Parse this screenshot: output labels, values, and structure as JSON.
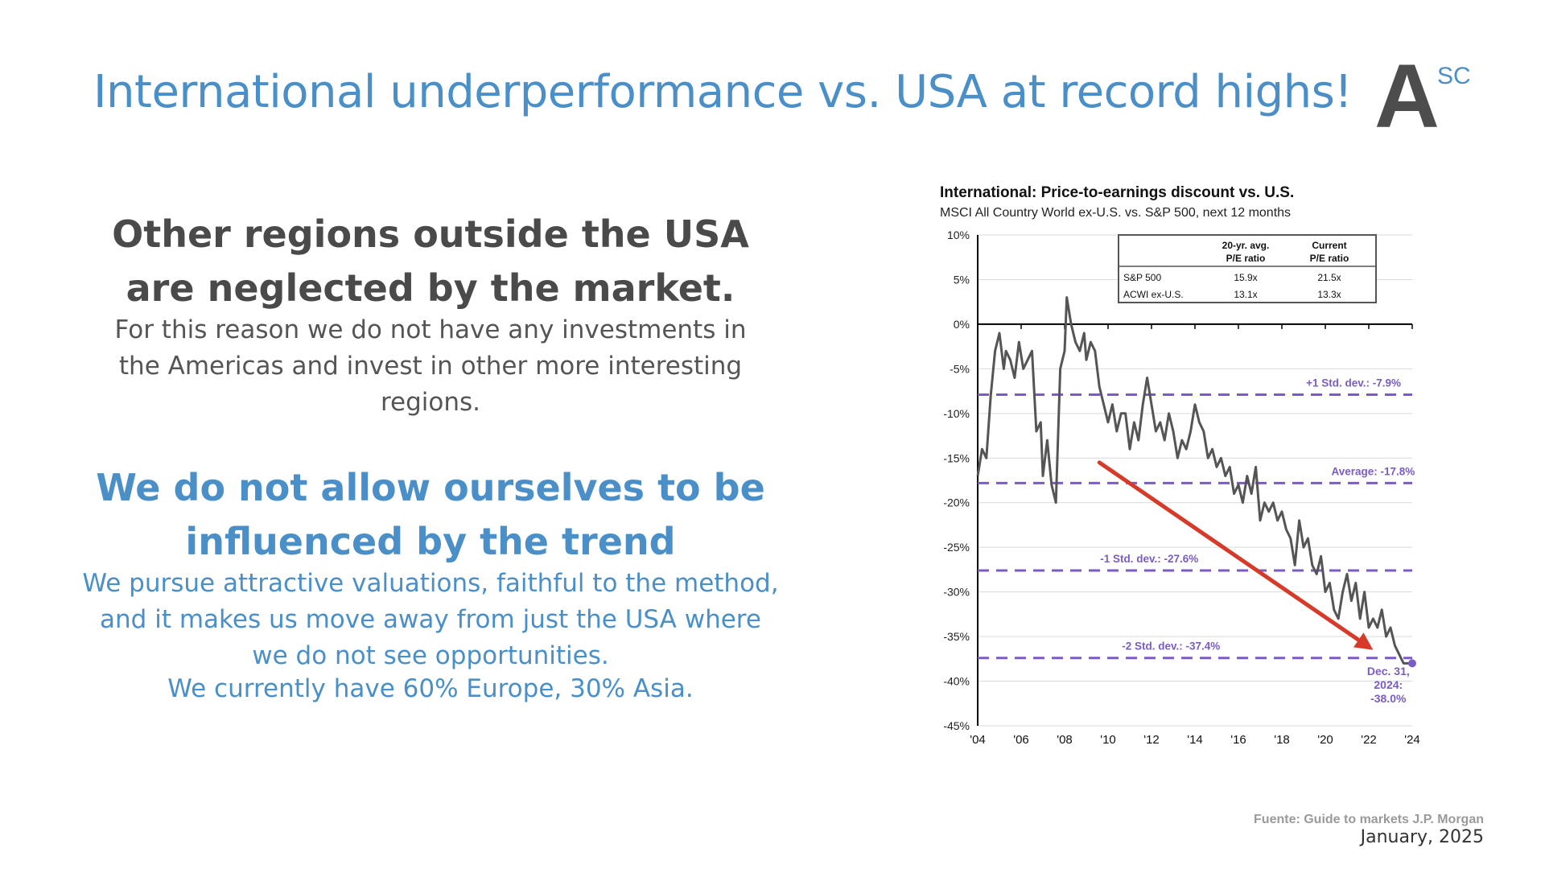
{
  "slide": {
    "title": "International underperformance vs. USA at record highs!",
    "logo": {
      "letter": "A",
      "superscript": "SC"
    },
    "heading1": "Other regions outside the USA are neglected by the market.",
    "paragraph1": "For this reason we do not have any investments in the Americas and invest in other more interesting regions.",
    "heading2": "We do not allow ourselves to be influenced by the trend",
    "paragraph2_line1": "We pursue attractive valuations, faithful to the method, and it makes us move away from just the USA where we do not see opportunities.",
    "paragraph2_line2": "We currently have 60% Europe, 30% Asia.",
    "source": "Fuente: Guide to markets J.P. Morgan",
    "date": "January, 2025"
  },
  "colors": {
    "title_blue": "#4a8fc7",
    "dark_text": "#4a4a4a",
    "series_line": "#555555",
    "reference_purple": "#7b5cc4",
    "arrow_red": "#d63b2a"
  },
  "chart_data": {
    "type": "line",
    "title": "International: Price-to-earnings discount vs. U.S.",
    "subtitle": "MSCI All Country World ex-U.S. vs. S&P 500, next 12 months",
    "ylim": [
      -45,
      10
    ],
    "yticks": [
      10,
      5,
      0,
      -5,
      -10,
      -15,
      -20,
      -25,
      -30,
      -35,
      -40,
      -45
    ],
    "ytick_labels": [
      "10%",
      "5%",
      "0%",
      "-5%",
      "-10%",
      "-15%",
      "-20%",
      "-25%",
      "-30%",
      "-35%",
      "-40%",
      "-45%"
    ],
    "xlim": [
      2004,
      2024
    ],
    "xticks": [
      2004,
      2006,
      2008,
      2010,
      2012,
      2014,
      2016,
      2018,
      2020,
      2022,
      2024
    ],
    "xtick_labels": [
      "'04",
      "'06",
      "'08",
      "'10",
      "'12",
      "'14",
      "'16",
      "'18",
      "'20",
      "'22",
      "'24"
    ],
    "grid": true,
    "series": [
      {
        "x": [
          2004.0,
          2004.2,
          2004.4,
          2004.6,
          2004.8,
          2005.0,
          2005.2,
          2005.3,
          2005.5,
          2005.7,
          2005.9,
          2006.1,
          2006.3,
          2006.5,
          2006.7,
          2006.9,
          2007.0,
          2007.2,
          2007.4,
          2007.6,
          2007.8,
          2008.0,
          2008.1,
          2008.3,
          2008.5,
          2008.7,
          2008.9,
          2009.0,
          2009.2,
          2009.4,
          2009.6,
          2009.8,
          2010.0,
          2010.2,
          2010.4,
          2010.6,
          2010.8,
          2011.0,
          2011.2,
          2011.4,
          2011.6,
          2011.8,
          2012.0,
          2012.2,
          2012.4,
          2012.6,
          2012.8,
          2013.0,
          2013.2,
          2013.4,
          2013.6,
          2013.8,
          2014.0,
          2014.2,
          2014.4,
          2014.6,
          2014.8,
          2015.0,
          2015.2,
          2015.4,
          2015.6,
          2015.8,
          2016.0,
          2016.2,
          2016.4,
          2016.6,
          2016.8,
          2017.0,
          2017.2,
          2017.4,
          2017.6,
          2017.8,
          2018.0,
          2018.2,
          2018.4,
          2018.6,
          2018.8,
          2019.0,
          2019.2,
          2019.4,
          2019.6,
          2019.8,
          2020.0,
          2020.2,
          2020.4,
          2020.6,
          2020.8,
          2021.0,
          2021.2,
          2021.4,
          2021.6,
          2021.8,
          2022.0,
          2022.2,
          2022.4,
          2022.6,
          2022.8,
          2023.0,
          2023.2,
          2023.4,
          2023.6,
          2023.8,
          2024.0
        ],
        "y": [
          -17,
          -14,
          -15,
          -8,
          -3,
          -1,
          -5,
          -3,
          -4,
          -6,
          -2,
          -5,
          -4,
          -3,
          -12,
          -11,
          -17,
          -13,
          -18,
          -20,
          -5,
          -3,
          3,
          0,
          -2,
          -3,
          -1,
          -4,
          -2,
          -3,
          -7,
          -9,
          -11,
          -9,
          -12,
          -10,
          -10,
          -14,
          -11,
          -13,
          -9,
          -6,
          -9,
          -12,
          -11,
          -13,
          -10,
          -12,
          -15,
          -13,
          -14,
          -12,
          -9,
          -11,
          -12,
          -15,
          -14,
          -16,
          -15,
          -17,
          -16,
          -19,
          -18,
          -20,
          -17,
          -19,
          -16,
          -22,
          -20,
          -21,
          -20,
          -22,
          -21,
          -23,
          -24,
          -27,
          -22,
          -25,
          -24,
          -27,
          -28,
          -26,
          -30,
          -29,
          -32,
          -33,
          -30,
          -28,
          -31,
          -29,
          -33,
          -30,
          -34,
          -33,
          -34,
          -32,
          -35,
          -34,
          -36,
          -37,
          -38,
          -38,
          -38
        ]
      }
    ],
    "reference_lines": [
      {
        "label": "+1 Std. dev.: -7.9%",
        "value": -7.9
      },
      {
        "label": "Average: -17.8%",
        "value": -17.8
      },
      {
        "label": "-1 Std. dev.: -27.6%",
        "value": -27.6
      },
      {
        "label": "-2 Std. dev.: -37.4%",
        "value": -37.4
      }
    ],
    "annotation": {
      "lines": [
        "Dec. 31,",
        "2024:",
        "-38.0%"
      ],
      "x": 2024,
      "y": -38.0
    },
    "arrow": {
      "from": [
        2009.6,
        -15.5
      ],
      "to": [
        2022.2,
        -36.5
      ]
    },
    "table": {
      "headers": [
        "",
        "20-yr. avg.\nP/E ratio",
        "Current\nP/E ratio"
      ],
      "header1_lines": [
        "20-yr. avg.",
        "P/E ratio"
      ],
      "header2_lines": [
        "Current",
        "P/E ratio"
      ],
      "rows": [
        [
          "S&P 500",
          "15.9x",
          "21.5x"
        ],
        [
          "ACWI ex-U.S.",
          "13.1x",
          "13.3x"
        ]
      ]
    }
  }
}
